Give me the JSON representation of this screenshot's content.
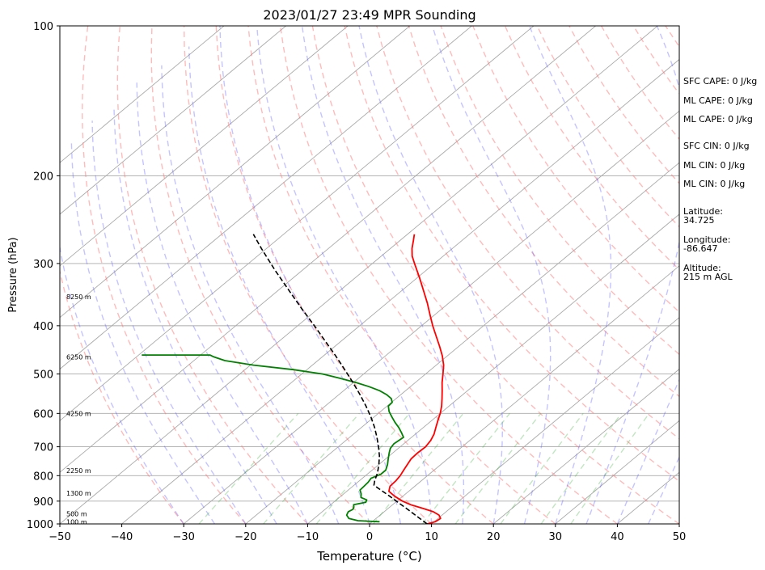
{
  "chart_data": {
    "type": "line",
    "title": "2023/01/27 23:49 MPR Sounding",
    "xlabel": "Temperature (°C)",
    "ylabel": "Pressure (hPa)",
    "xlim": [
      -50,
      50
    ],
    "ylim": [
      1000,
      100
    ],
    "y_scale": "log",
    "skew": "skew-T log-p",
    "grid": true,
    "x_ticks": [
      "−50",
      "−40",
      "−30",
      "−20",
      "−10",
      "0",
      "10",
      "20",
      "30",
      "40",
      "50"
    ],
    "y_ticks": [
      "100",
      "200",
      "300",
      "400",
      "500",
      "600",
      "700",
      "800",
      "900",
      "1000"
    ],
    "height_labels": [
      {
        "p": 990,
        "label": "100 m"
      },
      {
        "p": 955,
        "label": "500 m"
      },
      {
        "p": 868,
        "label": "1300 m"
      },
      {
        "p": 782,
        "label": "2250 m"
      },
      {
        "p": 600,
        "label": "4250 m"
      },
      {
        "p": 462,
        "label": "6250 m"
      },
      {
        "p": 350,
        "label": "8250 m"
      }
    ],
    "series": [
      {
        "kind": "temperature",
        "color": "#ff0000",
        "points": [
          [
            1000,
            9.3
          ],
          [
            990,
            10.2
          ],
          [
            975,
            10.4
          ],
          [
            960,
            9.5
          ],
          [
            945,
            7.9
          ],
          [
            930,
            5.5
          ],
          [
            915,
            2.9
          ],
          [
            900,
            0.9
          ],
          [
            880,
            -1.3
          ],
          [
            860,
            -3.2
          ],
          [
            840,
            -4.0
          ],
          [
            820,
            -4.1
          ],
          [
            800,
            -4.4
          ],
          [
            780,
            -4.9
          ],
          [
            760,
            -5.4
          ],
          [
            740,
            -5.9
          ],
          [
            720,
            -6.0
          ],
          [
            700,
            -5.9
          ],
          [
            680,
            -6.3
          ],
          [
            660,
            -7.0
          ],
          [
            640,
            -8.0
          ],
          [
            620,
            -9.0
          ],
          [
            600,
            -10.0
          ],
          [
            580,
            -11.2
          ],
          [
            560,
            -12.6
          ],
          [
            540,
            -14.1
          ],
          [
            520,
            -15.7
          ],
          [
            500,
            -17.2
          ],
          [
            480,
            -18.8
          ],
          [
            460,
            -20.8
          ],
          [
            440,
            -23.1
          ],
          [
            420,
            -25.6
          ],
          [
            400,
            -28.2
          ],
          [
            380,
            -30.8
          ],
          [
            360,
            -33.5
          ],
          [
            340,
            -36.5
          ],
          [
            320,
            -39.7
          ],
          [
            300,
            -43.2
          ],
          [
            290,
            -45.0
          ],
          [
            280,
            -46.5
          ],
          [
            270,
            -47.8
          ],
          [
            262,
            -48.9
          ]
        ]
      },
      {
        "kind": "dewpoint",
        "color": "#008000",
        "points": [
          [
            990,
            1.2
          ],
          [
            985,
            -2.5
          ],
          [
            975,
            -4.4
          ],
          [
            960,
            -5.4
          ],
          [
            945,
            -5.8
          ],
          [
            935,
            -5.5
          ],
          [
            925,
            -5.8
          ],
          [
            915,
            -6.3
          ],
          [
            905,
            -4.8
          ],
          [
            895,
            -5.1
          ],
          [
            885,
            -6.5
          ],
          [
            870,
            -7.2
          ],
          [
            855,
            -8.1
          ],
          [
            840,
            -8.2
          ],
          [
            825,
            -8.3
          ],
          [
            810,
            -8.6
          ],
          [
            795,
            -7.8
          ],
          [
            780,
            -7.8
          ],
          [
            760,
            -8.6
          ],
          [
            740,
            -9.6
          ],
          [
            720,
            -10.6
          ],
          [
            705,
            -11.3
          ],
          [
            690,
            -11.6
          ],
          [
            670,
            -11.3
          ],
          [
            655,
            -12.6
          ],
          [
            640,
            -14.0
          ],
          [
            625,
            -15.6
          ],
          [
            610,
            -17.1
          ],
          [
            595,
            -18.6
          ],
          [
            580,
            -19.8
          ],
          [
            570,
            -19.9
          ],
          [
            560,
            -20.8
          ],
          [
            550,
            -22.3
          ],
          [
            540,
            -24.2
          ],
          [
            530,
            -26.7
          ],
          [
            520,
            -29.6
          ],
          [
            510,
            -33.0
          ],
          [
            500,
            -36.6
          ],
          [
            490,
            -42.2
          ],
          [
            480,
            -49.5
          ],
          [
            470,
            -55.0
          ],
          [
            462,
            -57.5
          ],
          [
            458,
            -58.5
          ],
          [
            458,
            -69.5
          ]
        ]
      },
      {
        "kind": "parcel",
        "color": "#000000",
        "dashed": true,
        "points": [
          [
            1000,
            9.3
          ],
          [
            970,
            6.6
          ],
          [
            940,
            3.8
          ],
          [
            910,
            0.9
          ],
          [
            880,
            -2.1
          ],
          [
            850,
            -5.3
          ],
          [
            836,
            -6.8
          ],
          [
            820,
            -7.5
          ],
          [
            790,
            -8.6
          ],
          [
            760,
            -10.0
          ],
          [
            730,
            -11.6
          ],
          [
            700,
            -13.5
          ],
          [
            670,
            -15.6
          ],
          [
            640,
            -17.9
          ],
          [
            610,
            -20.5
          ],
          [
            580,
            -23.4
          ],
          [
            550,
            -26.6
          ],
          [
            520,
            -30.1
          ],
          [
            490,
            -33.9
          ],
          [
            460,
            -38.0
          ],
          [
            430,
            -42.5
          ],
          [
            400,
            -47.3
          ],
          [
            370,
            -52.6
          ],
          [
            340,
            -58.2
          ],
          [
            310,
            -64.3
          ],
          [
            280,
            -70.8
          ],
          [
            262,
            -74.9
          ]
        ]
      }
    ]
  },
  "info": {
    "sfc_cape": "SFC CAPE: 0 J/kg",
    "ml_cape": "ML CAPE: 0 J/kg",
    "ml_cape_2": "ML CAPE: 0 J/kg",
    "sfc_cin": "SFC CIN: 0 J/kg",
    "ml_cin": "ML CIN: 0 J/kg",
    "ml_cin_2": "ML CIN: 0 J/kg",
    "latitude_label": "Latitude:",
    "latitude_value": "34.725",
    "longitude_label": "Longitude:",
    "longitude_value": "-86.647",
    "altitude_label": "Altitude:",
    "altitude_value": "215 m AGL"
  }
}
